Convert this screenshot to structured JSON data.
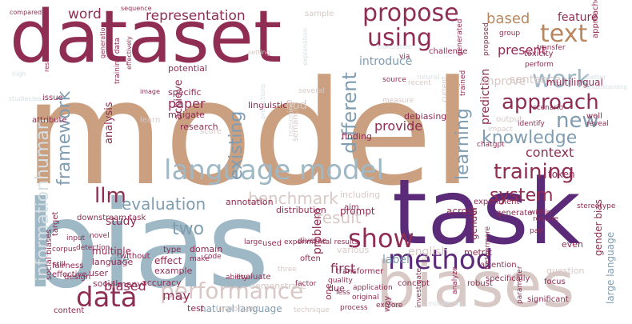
{
  "colors": {
    "tan": "#caa081",
    "wine": "#8f2d52",
    "purple": "#5b2a78",
    "steel": "#9fb8c6",
    "rose": "#d8c8c6",
    "brown": "#b8875f",
    "slate": "#7f9cb0",
    "pale": "#d6dfe3"
  },
  "words": [
    {
      "text": "model",
      "color": "tan"
    },
    {
      "text": "dataset",
      "color": "wine"
    },
    {
      "text": "bias",
      "color": "steel"
    },
    {
      "text": "task",
      "color": "purple"
    },
    {
      "text": "biases",
      "color": "rose"
    },
    {
      "text": "language model",
      "color": "steel"
    },
    {
      "text": "method",
      "color": "purple"
    },
    {
      "text": "using",
      "color": "wine"
    },
    {
      "text": "propose",
      "color": "wine"
    },
    {
      "text": "text",
      "color": "brown"
    },
    {
      "text": "work",
      "color": "steel"
    },
    {
      "text": "approach",
      "color": "wine"
    },
    {
      "text": "training",
      "color": "wine"
    },
    {
      "text": "data",
      "color": "wine"
    },
    {
      "text": "show",
      "color": "wine"
    },
    {
      "text": "performance",
      "color": "rose"
    },
    {
      "text": "llm",
      "color": "wine"
    },
    {
      "text": "framework",
      "color": "slate"
    },
    {
      "text": "informationhuman",
      "color": "pale"
    },
    {
      "text": "different",
      "color": "slate"
    },
    {
      "text": "existing",
      "color": "slate"
    },
    {
      "text": "new",
      "color": "slate"
    },
    {
      "text": "learning",
      "color": "slate"
    },
    {
      "text": "knowledge",
      "color": "slate"
    },
    {
      "text": "system",
      "color": "wine"
    },
    {
      "text": "benchmark",
      "color": "rose"
    },
    {
      "text": "result",
      "color": "rose"
    },
    {
      "text": "evaluation",
      "color": "slate"
    },
    {
      "text": "two",
      "color": "slate"
    },
    {
      "text": "representation",
      "color": "wine"
    },
    {
      "text": "word",
      "color": "wine"
    },
    {
      "text": "based",
      "color": "brown"
    },
    {
      "text": "feature",
      "color": "wine"
    },
    {
      "text": "present",
      "color": "wine"
    },
    {
      "text": "introduce",
      "color": "slate"
    },
    {
      "text": "sentence",
      "color": "rose"
    },
    {
      "text": "context",
      "color": "wine"
    },
    {
      "text": "token",
      "color": "wine"
    },
    {
      "text": "multilingual",
      "color": "wine"
    },
    {
      "text": "prediction",
      "color": "wine"
    },
    {
      "text": "improve",
      "color": "rose"
    },
    {
      "text": "provide",
      "color": "wine"
    },
    {
      "text": "problem",
      "color": "wine"
    },
    {
      "text": "first",
      "color": "wine"
    },
    {
      "text": "label",
      "color": "slate"
    },
    {
      "text": "english",
      "color": "rose"
    },
    {
      "text": "may",
      "color": "wine"
    },
    {
      "text": "biased",
      "color": "wine"
    },
    {
      "text": "paper",
      "color": "wine"
    },
    {
      "text": "specific",
      "color": "wine"
    },
    {
      "text": "analysis",
      "color": "wine"
    },
    {
      "text": "achieve",
      "color": "wine"
    },
    {
      "text": "study",
      "color": "wine"
    },
    {
      "text": "use",
      "color": "slate"
    },
    {
      "text": "mitigate",
      "color": "wine"
    },
    {
      "text": "research",
      "color": "wine"
    },
    {
      "text": "potential",
      "color": "wine"
    },
    {
      "text": "natural language",
      "color": "slate"
    },
    {
      "text": "gender bias",
      "color": "wine"
    },
    {
      "text": "large language",
      "color": "slate"
    },
    {
      "text": "gender",
      "color": "wine"
    },
    {
      "text": "even",
      "color": "wine"
    },
    {
      "text": "across",
      "color": "wine"
    },
    {
      "text": "prompt",
      "color": "wine"
    },
    {
      "text": "distribution",
      "color": "wine"
    },
    {
      "text": "social biases",
      "color": "wine"
    },
    {
      "text": "multiple",
      "color": "wine"
    },
    {
      "text": "language",
      "color": "wine"
    },
    {
      "text": "effect",
      "color": "wine"
    },
    {
      "text": "domain",
      "color": "wine"
    },
    {
      "text": "example",
      "color": "wine"
    },
    {
      "text": "user",
      "color": "wine"
    },
    {
      "text": "social",
      "color": "wine"
    },
    {
      "text": "many",
      "color": "wine"
    },
    {
      "text": "accuracy",
      "color": "wine"
    },
    {
      "text": "annotation",
      "color": "wine"
    },
    {
      "text": "including",
      "color": "rose"
    },
    {
      "text": "find",
      "color": "rose"
    },
    {
      "text": "finding",
      "color": "wine"
    },
    {
      "text": "aim",
      "color": "wine"
    },
    {
      "text": "metric",
      "color": "wine"
    },
    {
      "text": "experiment",
      "color": "wine"
    },
    {
      "text": "concept",
      "color": "wine"
    },
    {
      "text": "various",
      "color": "rose"
    },
    {
      "text": "demonstrate",
      "color": "rose"
    },
    {
      "text": "test",
      "color": "wine"
    },
    {
      "text": "important",
      "color": "rose"
    },
    {
      "text": "significant",
      "color": "wine"
    },
    {
      "text": "challenge",
      "color": "wine"
    },
    {
      "text": "sample",
      "color": "rose"
    },
    {
      "text": "generation",
      "color": "wine"
    },
    {
      "text": "training data",
      "color": "wine"
    },
    {
      "text": "effectively",
      "color": "wine"
    },
    {
      "text": "translation",
      "color": "pale"
    },
    {
      "text": "sequence",
      "color": "wine"
    },
    {
      "text": "compared",
      "color": "wine"
    },
    {
      "text": "results show",
      "color": "wine"
    },
    {
      "text": "setting",
      "color": "rose"
    },
    {
      "text": "issue",
      "color": "wine"
    },
    {
      "text": "attribute",
      "color": "wine"
    },
    {
      "text": "source",
      "color": "wine"
    },
    {
      "text": "several",
      "color": "rose"
    },
    {
      "text": "measure",
      "color": "rose"
    },
    {
      "text": "recent",
      "color": "rose"
    },
    {
      "text": "toxicity",
      "color": "wine"
    },
    {
      "text": "transfer",
      "color": "wine"
    },
    {
      "text": "group",
      "color": "wine"
    },
    {
      "text": "via",
      "color": "wine"
    },
    {
      "text": "perform",
      "color": "wine"
    },
    {
      "text": "identify",
      "color": "wine"
    },
    {
      "text": "well",
      "color": "wine"
    },
    {
      "text": "reveal",
      "color": "wine"
    },
    {
      "text": "debiasing",
      "color": "wine"
    },
    {
      "text": "chatgpt",
      "color": "wine"
    },
    {
      "text": "linguistic",
      "color": "wine"
    },
    {
      "text": "semantic",
      "color": "rose"
    },
    {
      "text": "score",
      "color": "rose"
    },
    {
      "text": "output",
      "color": "rose"
    },
    {
      "text": "impact",
      "color": "rose"
    },
    {
      "text": "scenario",
      "color": "wine"
    },
    {
      "text": "stereotype",
      "color": "wine"
    },
    {
      "text": "within",
      "color": "wine"
    },
    {
      "text": "require",
      "color": "wine"
    },
    {
      "text": "pair",
      "color": "wine"
    },
    {
      "text": "question",
      "color": "rose"
    },
    {
      "text": "generate",
      "color": "wine"
    },
    {
      "text": "attention",
      "color": "wine"
    },
    {
      "text": "transformer",
      "color": "wine"
    },
    {
      "text": "quality",
      "color": "wine"
    },
    {
      "text": "application",
      "color": "wine"
    },
    {
      "text": "original",
      "color": "wine"
    },
    {
      "text": "process",
      "color": "wine"
    },
    {
      "text": "technique",
      "color": "rose"
    },
    {
      "text": "explore",
      "color": "wine"
    },
    {
      "text": "investigate",
      "color": "wine"
    },
    {
      "text": "way",
      "color": "wine"
    },
    {
      "text": "due",
      "color": "wine"
    },
    {
      "text": "one",
      "color": "wine"
    },
    {
      "text": "parameter",
      "color": "wine"
    },
    {
      "text": "focus",
      "color": "wine"
    },
    {
      "text": "specifically",
      "color": "wine"
    },
    {
      "text": "robust",
      "color": "wine"
    },
    {
      "text": "factor",
      "color": "wine"
    },
    {
      "text": "less",
      "color": "wine"
    },
    {
      "text": "three",
      "color": "rose"
    },
    {
      "text": "ability",
      "color": "wine"
    },
    {
      "text": "code",
      "color": "wine"
    },
    {
      "text": "make",
      "color": "wine"
    },
    {
      "text": "often",
      "color": "wine"
    },
    {
      "text": "diverse",
      "color": "wine"
    },
    {
      "text": "experimental results",
      "color": "wine"
    },
    {
      "text": "large",
      "color": "wine"
    },
    {
      "text": "used",
      "color": "wine"
    },
    {
      "text": "evaluate",
      "color": "wine"
    },
    {
      "text": "without",
      "color": "wine"
    },
    {
      "text": "type",
      "color": "wine"
    },
    {
      "text": "downstream task",
      "color": "wine"
    },
    {
      "text": "target",
      "color": "wine"
    },
    {
      "text": "input",
      "color": "wine"
    },
    {
      "text": "detection",
      "color": "wine"
    },
    {
      "text": "corpus",
      "color": "wine"
    },
    {
      "text": "fairness",
      "color": "wine"
    },
    {
      "text": "effective",
      "color": "wine"
    },
    {
      "text": "still",
      "color": "wine"
    },
    {
      "text": "design",
      "color": "wine"
    },
    {
      "text": "content",
      "color": "wine"
    },
    {
      "text": "novel",
      "color": "wine"
    },
    {
      "text": "trained",
      "color": "wine"
    },
    {
      "text": "current",
      "color": "rose"
    },
    {
      "text": "image",
      "color": "wine"
    },
    {
      "text": "learn",
      "color": "rose"
    },
    {
      "text": "high",
      "color": "pale"
    },
    {
      "text": "studies",
      "color": "pale"
    },
    {
      "text": "lead",
      "color": "pale"
    },
    {
      "text": "neural",
      "color": "pale"
    },
    {
      "text": "understanding",
      "color": "pale"
    },
    {
      "text": "better",
      "color": "pale"
    },
    {
      "text": "approaches",
      "color": "wine"
    },
    {
      "text": "furthermore",
      "color": "wine"
    },
    {
      "text": "analyze",
      "color": "wine"
    },
    {
      "text": "proposed",
      "color": "wine"
    },
    {
      "text": "generated",
      "color": "wine"
    },
    {
      "text": "models llm",
      "color": "pale"
    },
    {
      "text": "explanation",
      "color": "pale"
    },
    {
      "text": "reasoning",
      "color": "pale"
    },
    {
      "text": "predictions",
      "color": "pale"
    }
  ]
}
